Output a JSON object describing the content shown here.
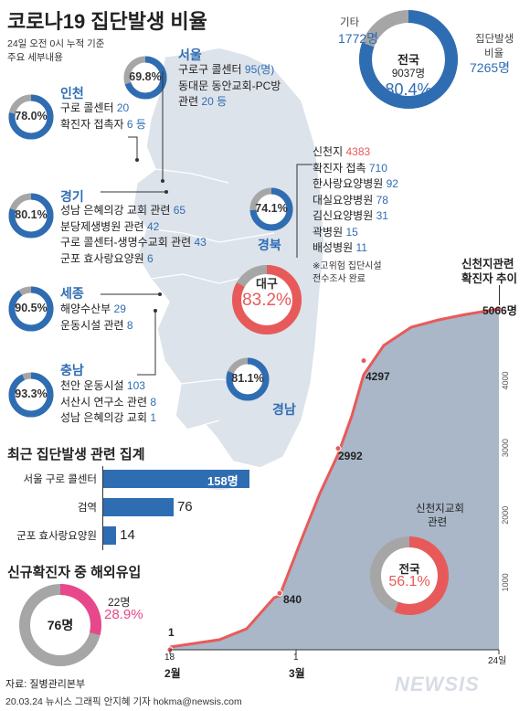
{
  "title": "코로나19 집단발생 비율",
  "subtitle_line1": "24일 오전 0시 누적 기준",
  "subtitle_line2": "주요 세부내용",
  "national": {
    "label": "전국",
    "total": "9037명",
    "percent": "80.4%",
    "value": 80.4,
    "other_label": "기타",
    "other_value": "1772명",
    "cluster_label1": "집단발생",
    "cluster_label2": "비율",
    "cluster_value": "7265명"
  },
  "seoul": {
    "name": "서울",
    "percent": "69.8%",
    "value": 69.8,
    "items": [
      {
        "text": "구로구 콜센터 ",
        "num": "95(명)"
      },
      {
        "text": "동대문 동안교회-PC방",
        "num": ""
      },
      {
        "text": "관련 ",
        "num": "20 등"
      }
    ]
  },
  "incheon": {
    "name": "인천",
    "percent": "78.0%",
    "value": 78.0,
    "items": [
      {
        "text": "구로 콜센터 ",
        "num": "20"
      },
      {
        "text": "확진자 접촉자 ",
        "num": "6 등"
      }
    ]
  },
  "gyeonggi": {
    "name": "경기",
    "percent": "80.1%",
    "value": 80.1,
    "items": [
      {
        "text": "성남 은혜의강 교회 관련 ",
        "num": "65"
      },
      {
        "text": "분당제생병원 관련 ",
        "num": "42"
      },
      {
        "text": "구로 콜센터-생명수교회 관련 ",
        "num": "43"
      },
      {
        "text": "군포 효사랑요양원 ",
        "num": "6"
      }
    ]
  },
  "sejong": {
    "name": "세종",
    "percent": "90.5%",
    "value": 90.5,
    "items": [
      {
        "text": "해양수산부 ",
        "num": "29"
      },
      {
        "text": "운동시설 관련 ",
        "num": "8"
      }
    ]
  },
  "chungnam": {
    "name": "충남",
    "percent": "93.3%",
    "value": 93.3,
    "items": [
      {
        "text": "천안 운동시설 ",
        "num": "103"
      },
      {
        "text": "서산시 연구소 관련 ",
        "num": "8"
      },
      {
        "text": "성남 은혜의강 교회 ",
        "num": "1"
      }
    ]
  },
  "gyeongbuk": {
    "name": "경북",
    "percent": "74.1%",
    "value": 74.1
  },
  "daegu": {
    "name": "대구",
    "percent": "83.2%",
    "value": 83.2,
    "items": [
      {
        "text": "신천지 ",
        "num": "4383",
        "red": true
      },
      {
        "text": "확진자 접촉 ",
        "num": "710"
      },
      {
        "text": "한사랑요양병원 ",
        "num": "92"
      },
      {
        "text": "대실요양병원 ",
        "num": "78"
      },
      {
        "text": "김신요양병원 ",
        "num": "31"
      },
      {
        "text": "곽병원 ",
        "num": "15"
      },
      {
        "text": "배성병원 ",
        "num": "11"
      }
    ],
    "note1": "※고위험 집단시설",
    "note2": "전수조사 완료"
  },
  "gyeongnam": {
    "name": "경남",
    "percent": "81.1%",
    "value": 81.1
  },
  "recent": {
    "title": "최근 집단발생 관련 집계",
    "bars": [
      {
        "label": "서울 구로 콜센터",
        "value": 158,
        "display": "158명"
      },
      {
        "label": "검역",
        "value": 76,
        "display": "76"
      },
      {
        "label": "군포 효사랑요양원",
        "value": 14,
        "display": "14"
      }
    ]
  },
  "overseas": {
    "title": "신규확진자 중 해외유입",
    "total": "76명",
    "count": "22명",
    "percent": "28.9%",
    "value": 28.9
  },
  "shincheonji_chart": {
    "title1": "신천지관련",
    "title2": "확진자 추이",
    "last_value": "5066명",
    "inner_title1": "신천지교회",
    "inner_title2": "관련",
    "inner_label": "전국",
    "inner_percent": "56.1%",
    "inner_value": 56.1
  },
  "chart_data": {
    "type": "area",
    "x": [
      "2/18",
      "3/1",
      "3/8",
      "3/16",
      "3/24"
    ],
    "values": [
      1,
      840,
      2992,
      4297,
      5066
    ],
    "point_labels": [
      "1",
      "840",
      "2992",
      "4297",
      "5066명"
    ],
    "x_ticks": [
      "18",
      "1",
      "24일"
    ],
    "x_month_labels": [
      "2월",
      "3월"
    ],
    "y_ticks": [
      "1000",
      "2000",
      "3000",
      "4000"
    ],
    "ylim": [
      0,
      5200
    ]
  },
  "footer": {
    "source": "자료: 질병관리본부",
    "credit": "20.03.24  뉴시스 그래픽 안지혜 기자  hokma@newsis.com",
    "logo": "NEWSIS"
  },
  "colors": {
    "blue": "#2f6db3",
    "red": "#e85a5a",
    "pink": "#e8488b",
    "gray": "#a6a6a6",
    "map": "#dde3ea",
    "area": "#a9b7c8"
  }
}
